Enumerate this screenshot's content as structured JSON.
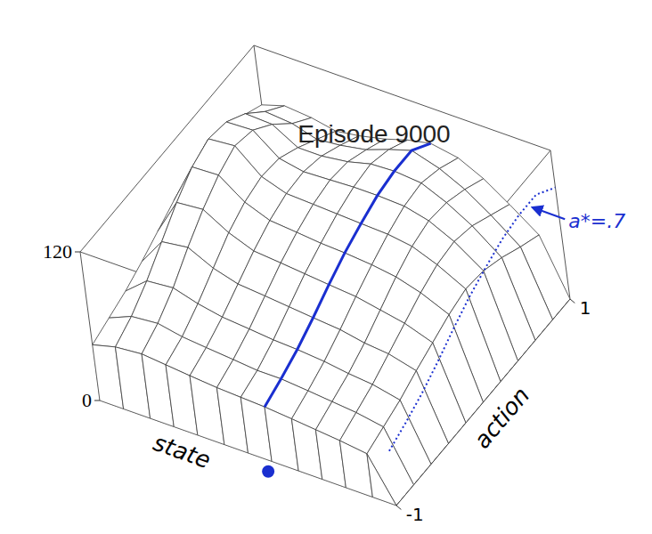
{
  "chart_data": {
    "type": "surface",
    "title": "Episode 9000",
    "x_label": "state",
    "y_label": "action",
    "color": "#3a3a3a",
    "x": [
      0,
      0.08,
      0.17,
      0.25,
      0.33,
      0.42,
      0.5,
      0.58,
      0.67,
      0.75,
      0.83,
      0.92,
      1
    ],
    "y": [
      -1,
      -0.8,
      -0.6,
      -0.4,
      -0.2,
      0,
      0.2,
      0.4,
      0.6,
      0.8,
      1
    ],
    "z": [
      [
        45,
        50,
        55,
        62,
        70,
        78,
        85,
        88,
        86,
        80,
        72
      ],
      [
        50,
        58,
        70,
        85,
        100,
        112,
        118,
        115,
        105,
        90,
        78
      ],
      [
        52,
        60,
        72,
        88,
        102,
        113,
        120,
        116,
        104,
        88,
        76
      ],
      [
        50,
        56,
        66,
        78,
        90,
        98,
        102,
        100,
        92,
        82,
        72
      ],
      [
        48,
        54,
        62,
        72,
        82,
        90,
        95,
        96,
        92,
        84,
        75
      ],
      [
        46,
        52,
        60,
        70,
        80,
        88,
        94,
        97,
        95,
        88,
        80
      ],
      [
        45,
        50,
        58,
        68,
        78,
        86,
        93,
        98,
        100,
        95,
        86
      ],
      [
        44,
        50,
        57,
        66,
        76,
        85,
        92,
        98,
        101,
        101,
        90
      ],
      [
        42,
        48,
        55,
        64,
        74,
        83,
        91,
        97,
        99,
        94,
        86
      ],
      [
        40,
        46,
        52,
        60,
        70,
        80,
        88,
        92,
        90,
        84,
        76
      ],
      [
        38,
        44,
        50,
        58,
        66,
        74,
        80,
        82,
        78,
        70,
        62
      ],
      [
        35,
        40,
        45,
        52,
        58,
        64,
        68,
        66,
        60,
        52,
        45
      ],
      [
        0,
        0,
        0,
        0,
        0,
        0,
        0,
        0,
        0,
        0,
        0
      ]
    ],
    "xlim": [
      0,
      1
    ],
    "ylim": [
      -1,
      1
    ],
    "yticks": [
      -1,
      1
    ],
    "zlim": [
      0,
      120
    ],
    "zticks": [
      0,
      120
    ],
    "annotations": [
      {
        "text": "a*=.7",
        "x": 0.58,
        "y": 0.7,
        "color": "#1a2fd0"
      }
    ]
  }
}
